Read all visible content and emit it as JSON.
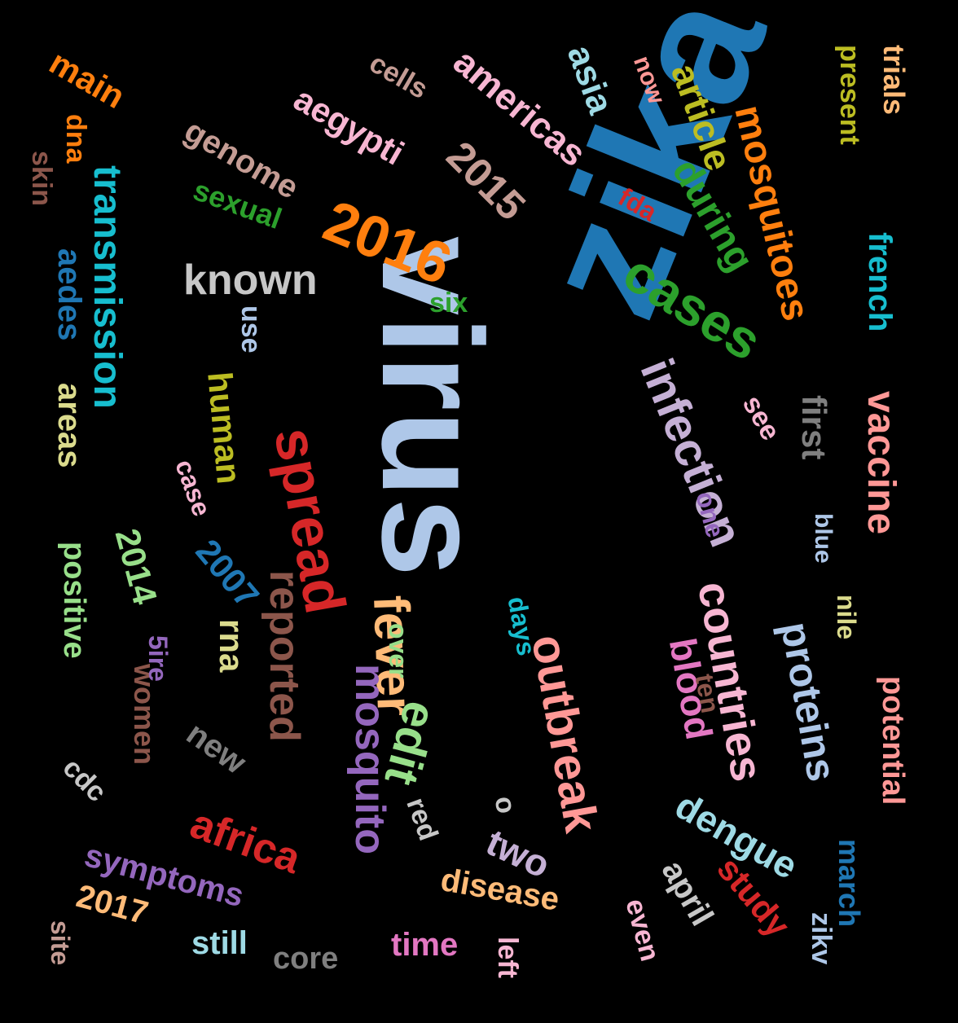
{
  "cloud": {
    "words": [
      {
        "text": "zika",
        "color": "#1f77b4"
      },
      {
        "text": "virus",
        "color": "#aec7e8"
      },
      {
        "text": "2016",
        "color": "#ff7f0e"
      },
      {
        "text": "cases",
        "color": "#2ca02c"
      },
      {
        "text": "spread",
        "color": "#d62728"
      },
      {
        "text": "transmission",
        "color": "#17becf"
      },
      {
        "text": "infection",
        "color": "#c5b0d5"
      },
      {
        "text": "fever",
        "color": "#ffbb78"
      },
      {
        "text": "mosquito",
        "color": "#9467bd"
      },
      {
        "text": "mosquitoes",
        "color": "#ff7f0e"
      },
      {
        "text": "countries",
        "color": "#f7b6d2"
      },
      {
        "text": "outbreak",
        "color": "#ff9896"
      },
      {
        "text": "known",
        "color": "#c7c7c7"
      },
      {
        "text": "2015",
        "color": "#c49c94"
      },
      {
        "text": "vaccine",
        "color": "#ff9896"
      },
      {
        "text": "reported",
        "color": "#8c564b"
      },
      {
        "text": "edit",
        "color": "#98df8a"
      },
      {
        "text": "human",
        "color": "#bcbd22"
      },
      {
        "text": "during",
        "color": "#2ca02c"
      },
      {
        "text": "genome",
        "color": "#c49c94"
      },
      {
        "text": "americas",
        "color": "#f7b6d2"
      },
      {
        "text": "aegypti",
        "color": "#f7b6d2"
      },
      {
        "text": "dengue",
        "color": "#9edae5"
      },
      {
        "text": "symptoms",
        "color": "#9467bd"
      },
      {
        "text": "disease",
        "color": "#ffbb78"
      },
      {
        "text": "blood",
        "color": "#e377c2"
      },
      {
        "text": "proteins",
        "color": "#aec7e8"
      },
      {
        "text": "french",
        "color": "#17becf"
      },
      {
        "text": "article",
        "color": "#bcbd22"
      },
      {
        "text": "first",
        "color": "#7f7f7f"
      },
      {
        "text": "areas",
        "color": "#dbdb8d"
      },
      {
        "text": "aedes",
        "color": "#1f77b4"
      },
      {
        "text": "2007",
        "color": "#1f77b4"
      },
      {
        "text": "2014",
        "color": "#98df8a"
      },
      {
        "text": "positive",
        "color": "#98df8a"
      },
      {
        "text": "women",
        "color": "#8c564b"
      },
      {
        "text": "africa",
        "color": "#d62728"
      },
      {
        "text": "rna",
        "color": "#dbdb8d"
      },
      {
        "text": "potential",
        "color": "#ff9896"
      },
      {
        "text": "present",
        "color": "#bcbd22"
      },
      {
        "text": "trials",
        "color": "#ffbb78"
      },
      {
        "text": "sexual",
        "color": "#2ca02c"
      },
      {
        "text": "asia",
        "color": "#9edae5"
      },
      {
        "text": "main",
        "color": "#ff7f0e"
      },
      {
        "text": "cells",
        "color": "#c49c94"
      },
      {
        "text": "study",
        "color": "#d62728"
      },
      {
        "text": "april",
        "color": "#c7c7c7"
      },
      {
        "text": "march",
        "color": "#1f77b4"
      },
      {
        "text": "two",
        "color": "#c5b0d5"
      },
      {
        "text": "new",
        "color": "#7f7f7f"
      },
      {
        "text": "2017",
        "color": "#ffbb78"
      },
      {
        "text": "time",
        "color": "#e377c2"
      },
      {
        "text": "still",
        "color": "#9edae5"
      },
      {
        "text": "core",
        "color": "#7f7f7f"
      },
      {
        "text": "nile",
        "color": "#dbdb8d"
      },
      {
        "text": "skin",
        "color": "#8c564b"
      },
      {
        "text": "dna",
        "color": "#ff7f0e"
      },
      {
        "text": "now",
        "color": "#ff9896"
      },
      {
        "text": "fda",
        "color": "#d62728"
      },
      {
        "text": "six",
        "color": "#2ca02c"
      },
      {
        "text": "use",
        "color": "#aec7e8"
      },
      {
        "text": "see",
        "color": "#f7b6d2"
      },
      {
        "text": "one",
        "color": "#9467bd"
      },
      {
        "text": "blue",
        "color": "#aec7e8"
      },
      {
        "text": "case",
        "color": "#f7b6d2"
      },
      {
        "text": "5ire",
        "color": "#9467bd"
      },
      {
        "text": "over",
        "color": "#98df8a"
      },
      {
        "text": "days",
        "color": "#17becf"
      },
      {
        "text": "ten",
        "color": "#8c564b"
      },
      {
        "text": "red",
        "color": "#c7c7c7"
      },
      {
        "text": "o",
        "color": "#c7c7c7"
      },
      {
        "text": "even",
        "color": "#f7b6d2"
      },
      {
        "text": "left",
        "color": "#f7b6d2"
      },
      {
        "text": "zikv",
        "color": "#aec7e8"
      },
      {
        "text": "cdc",
        "color": "#c7c7c7"
      },
      {
        "text": "site",
        "color": "#c49c94"
      }
    ]
  }
}
